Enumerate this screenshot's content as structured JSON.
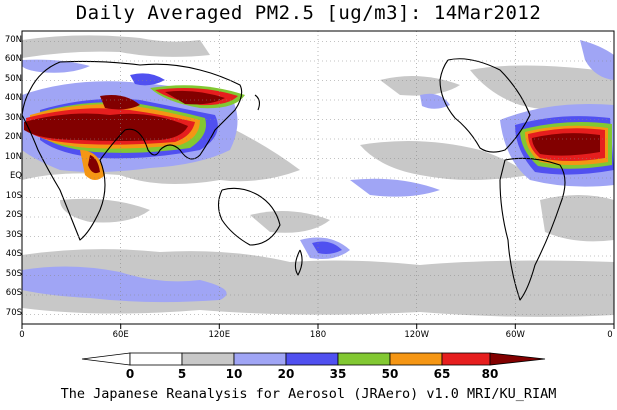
{
  "title": "Daily Averaged PM2.5 [ug/m3]: 14Mar2012",
  "footer": "The Japanese Reanalysis for Aerosol (JRAero) v1.0 MRI/KU_RIAM",
  "lat_labels": [
    "70N",
    "60N",
    "50N",
    "40N",
    "30N",
    "20N",
    "10N",
    "EQ",
    "10S",
    "20S",
    "30S",
    "40S",
    "50S",
    "60S",
    "70S"
  ],
  "lon_labels": [
    "0",
    "60E",
    "120E",
    "180",
    "120W",
    "60W",
    "0"
  ],
  "colorbar": {
    "labels": [
      "0",
      "5",
      "10",
      "20",
      "35",
      "50",
      "65",
      "80"
    ],
    "colors": [
      "#ffffff",
      "#ffffff",
      "#c8c8c8",
      "#a0a5f5",
      "#5050f0",
      "#82c832",
      "#f59614",
      "#e61e1e",
      "#820000"
    ]
  },
  "chart_data": {
    "type": "heatmap",
    "title": "Daily Averaged PM2.5 [ug/m3]: 14Mar2012",
    "variable": "PM2.5",
    "units": "ug/m3",
    "date": "14Mar2012",
    "lon_range": [
      0,
      360
    ],
    "lat_range": [
      -75,
      75
    ],
    "contour_levels": [
      0,
      5,
      10,
      20,
      35,
      50,
      65,
      80
    ],
    "grid": true
  }
}
